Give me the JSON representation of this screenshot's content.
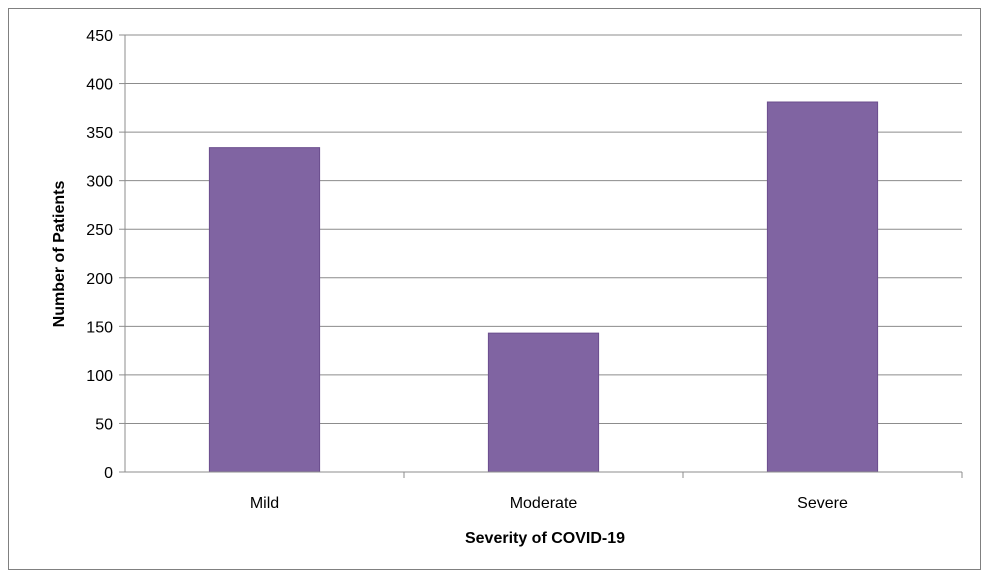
{
  "chart_data": {
    "type": "bar",
    "categories": [
      "Mild",
      "Moderate",
      "Severe"
    ],
    "values": [
      334,
      143,
      381
    ],
    "title": "",
    "xlabel": "Severity of COVID-19",
    "ylabel": "Number of Patients",
    "ylim": [
      0,
      450
    ],
    "yticks": [
      0,
      50,
      100,
      150,
      200,
      250,
      300,
      350,
      400,
      450
    ],
    "grid": true,
    "legend": "none",
    "colors": {
      "bar_fill": "#8064A2",
      "bar_stroke": "#6B4E8E",
      "grid": "#8C8C8C",
      "axis": "#8C8C8C"
    }
  }
}
